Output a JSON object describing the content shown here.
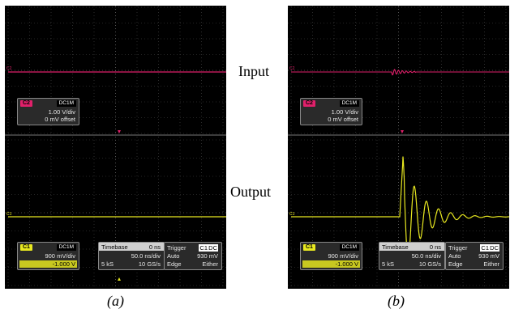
{
  "side_labels": {
    "input": "Input",
    "output": "Output"
  },
  "captions": {
    "a": "(a)",
    "b": "(b)"
  },
  "colors": {
    "ch2": "#e0206a",
    "ch1": "#e8e820",
    "background": "#000000",
    "grid": "#5a5a5a"
  },
  "ch2_box": {
    "name": "C2",
    "coupling": "DC1M",
    "scale": "1.00 V/div",
    "offset": "0 mV offset"
  },
  "ch1_box": {
    "name": "C1",
    "coupling": "DC1M",
    "scale": "900 mV/div",
    "offset": "-1.000 V"
  },
  "timebase": {
    "label": "Timebase",
    "delay": "0 ns",
    "div": "50.0 ns/div",
    "samples": "5 kS",
    "rate": "10 GS/s"
  },
  "trigger": {
    "label": "Trigger",
    "source": "C1",
    "coupling": "DC",
    "mode": "Auto",
    "level": "930 mV",
    "type": "Edge",
    "slope": "Either"
  },
  "channel_markers": {
    "ch2": "C2",
    "ch1": "C1"
  }
}
